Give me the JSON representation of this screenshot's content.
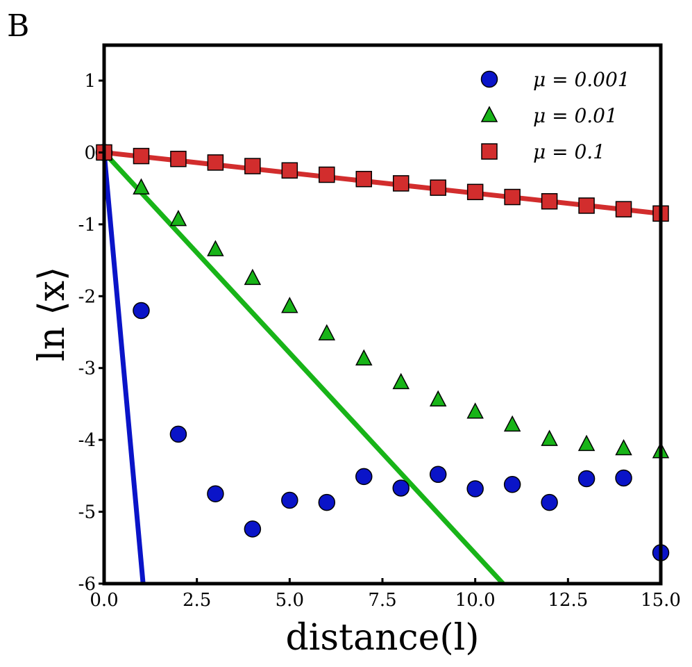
{
  "panel_label": "B",
  "chart_data": {
    "type": "scatter",
    "title": "",
    "xlabel": "distance(l)",
    "ylabel": "ln ⟨x⟩",
    "xlim": [
      0,
      15
    ],
    "ylim": [
      -6,
      1.5
    ],
    "xticks": [
      0.0,
      2.5,
      5.0,
      7.5,
      10.0,
      12.5,
      15.0
    ],
    "xtick_labels": [
      "0.0",
      "2.5",
      "5.0",
      "7.5",
      "10.0",
      "12.5",
      "15.0"
    ],
    "yticks": [
      1,
      0,
      -1,
      -2,
      -3,
      -4,
      -5,
      -6
    ],
    "ytick_labels": [
      "1",
      "0",
      "-1",
      "-2",
      "-3",
      "-4",
      "-5",
      "-6"
    ],
    "grid": false,
    "legend_position": "top-right",
    "series": [
      {
        "name": "μ = 0.001",
        "marker": "circle",
        "color": "#0a14c8",
        "x": [
          0,
          1,
          2,
          3,
          4,
          5,
          6,
          7,
          8,
          9,
          10,
          11,
          12,
          13,
          14,
          15
        ],
        "y": [
          0.0,
          -2.2,
          -3.92,
          -4.75,
          -5.24,
          -4.84,
          -4.87,
          -4.51,
          -4.67,
          -4.48,
          -4.68,
          -4.62,
          -4.87,
          -4.54,
          -4.53,
          -5.57
        ]
      },
      {
        "name": "μ = 0.01",
        "marker": "triangle",
        "color": "#18b418",
        "x": [
          0,
          1,
          2,
          3,
          4,
          5,
          6,
          7,
          8,
          9,
          10,
          11,
          12,
          13,
          14,
          15
        ],
        "y": [
          0.0,
          -0.49,
          -0.93,
          -1.35,
          -1.75,
          -2.14,
          -2.52,
          -2.87,
          -3.2,
          -3.44,
          -3.61,
          -3.79,
          -3.99,
          -4.06,
          -4.12,
          -4.16
        ]
      },
      {
        "name": "μ = 0.1",
        "marker": "square",
        "color": "#d22d2d",
        "x": [
          0,
          1,
          2,
          3,
          4,
          5,
          6,
          7,
          8,
          9,
          10,
          11,
          12,
          13,
          14,
          15
        ],
        "y": [
          0.0,
          -0.05,
          -0.09,
          -0.14,
          -0.19,
          -0.25,
          -0.31,
          -0.37,
          -0.43,
          -0.49,
          -0.55,
          -0.62,
          -0.68,
          -0.74,
          -0.79,
          -0.85
        ]
      }
    ],
    "fit_lines": [
      {
        "name": "μ = 0.001 theory",
        "color": "#0a14c8",
        "x": [
          0,
          1.05
        ],
        "y": [
          0,
          -6
        ]
      },
      {
        "name": "μ = 0.01 theory",
        "color": "#18b418",
        "x": [
          0,
          10.75
        ],
        "y": [
          0,
          -6
        ]
      },
      {
        "name": "μ = 0.1 theory",
        "color": "#d22d2d",
        "x": [
          0,
          15
        ],
        "y": [
          0,
          -0.85
        ]
      }
    ],
    "legend": [
      {
        "marker": "circle",
        "color": "#0a14c8",
        "label": "μ = 0.001"
      },
      {
        "marker": "triangle",
        "color": "#18b418",
        "label": "μ = 0.01"
      },
      {
        "marker": "square",
        "color": "#d22d2d",
        "label": "μ = 0.1"
      }
    ]
  }
}
